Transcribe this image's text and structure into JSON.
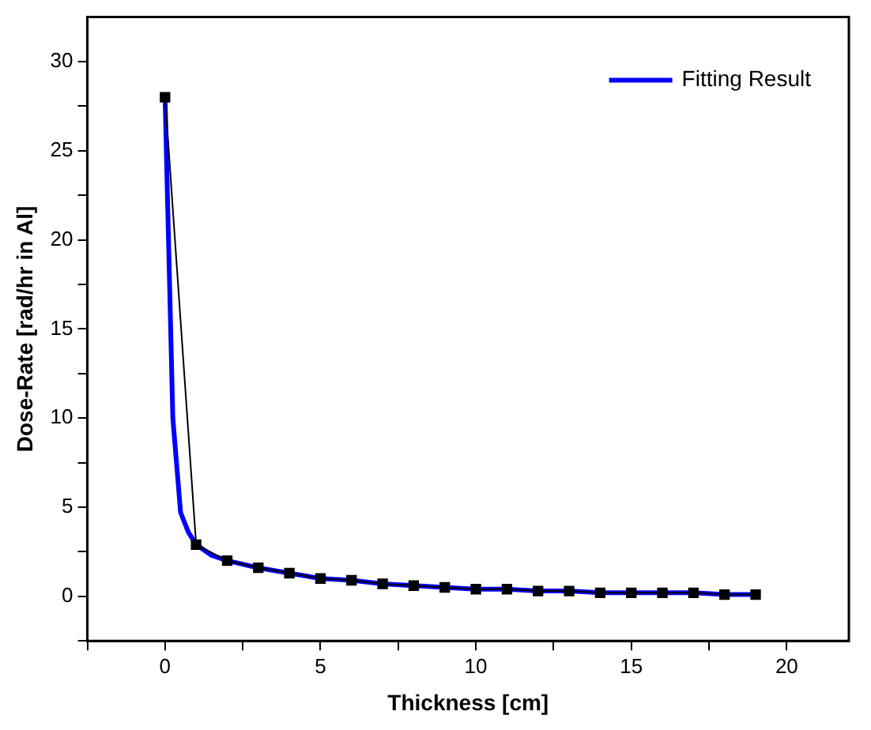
{
  "chart_data": {
    "type": "line",
    "xlabel": "Thickness [cm]",
    "ylabel": "Dose-Rate [rad/hr in Al]",
    "xlim": [
      -2.5,
      22
    ],
    "xticks": [
      {
        "value": -2.5,
        "label": null
      },
      0,
      {
        "value": 2.5,
        "label": null
      },
      5,
      {
        "value": 7.5,
        "label": null
      },
      10,
      {
        "value": 12.5,
        "label": null
      },
      15,
      {
        "value": 17.5,
        "label": null
      },
      20
    ],
    "ylim": [
      -2.5,
      32.5
    ],
    "yticks": [
      {
        "value": -2.5,
        "label": null
      },
      0,
      {
        "value": 2.5,
        "label": null
      },
      5,
      {
        "value": 7.5,
        "label": null
      },
      10,
      {
        "value": 12.5,
        "label": null
      },
      15,
      {
        "value": 17.5,
        "label": null
      },
      20,
      {
        "value": 22.5,
        "label": null
      },
      25,
      {
        "value": 27.5,
        "label": null
      },
      30
    ],
    "grid": false,
    "legend": "top right",
    "series": [
      {
        "color": "#000000",
        "marker": "square",
        "line_style": "solid",
        "x": [
          0,
          1,
          2,
          3,
          4,
          5,
          6,
          7,
          8,
          9,
          10,
          11,
          12,
          13,
          14,
          15,
          16,
          17,
          18,
          19
        ],
        "values": [
          28,
          2.9,
          2.0,
          1.6,
          1.3,
          1.0,
          0.9,
          0.7,
          0.6,
          0.5,
          0.4,
          0.4,
          0.3,
          0.3,
          0.2,
          0.2,
          0.2,
          0.2,
          0.1,
          0.1
        ]
      },
      {
        "name": "Fitting Result",
        "color": "#0000ff",
        "marker": "none",
        "line_style": "solid",
        "x": [
          0,
          0.25,
          0.5,
          0.75,
          1,
          1.5,
          2,
          3,
          4,
          5,
          6,
          7,
          8,
          9,
          10,
          11,
          12,
          13,
          14,
          15,
          16,
          17,
          18,
          19
        ],
        "values": [
          28,
          10,
          4.7,
          3.6,
          2.9,
          2.3,
          2.0,
          1.6,
          1.3,
          1.0,
          0.9,
          0.7,
          0.6,
          0.5,
          0.4,
          0.4,
          0.3,
          0.3,
          0.2,
          0.2,
          0.2,
          0.2,
          0.1,
          0.1
        ]
      }
    ]
  }
}
